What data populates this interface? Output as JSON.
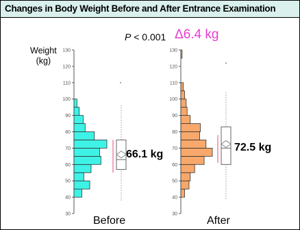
{
  "title": "Changes in Body Weight Before and After Entrance Examination",
  "p_value": {
    "symbol": "P",
    "text": " < 0.001"
  },
  "delta": "Δ6.4 kg",
  "colors": {
    "before_fill": "#3ef2e6",
    "after_fill": "#f7a86a",
    "title_bg": "#d9f0ec",
    "delta": "#e83cd1",
    "mean_line": "#e86c8c"
  },
  "chart_data": [
    {
      "type": "histogram-boxplot",
      "group": "Before",
      "color": "#3ef2e6",
      "ylabel": [
        "Weight",
        "(kg)"
      ],
      "yticks": [
        30,
        40,
        50,
        60,
        70,
        80,
        90,
        100,
        110,
        120,
        130
      ],
      "ylim": [
        30,
        130
      ],
      "bins": [
        {
          "from": 40,
          "to": 45,
          "width": 0.24
        },
        {
          "from": 45,
          "to": 50,
          "width": 0.48
        },
        {
          "from": 50,
          "to": 55,
          "width": 0.3
        },
        {
          "from": 55,
          "to": 60,
          "width": 0.52
        },
        {
          "from": 60,
          "to": 65,
          "width": 0.82
        },
        {
          "from": 65,
          "to": 70,
          "width": 0.78
        },
        {
          "from": 70,
          "to": 75,
          "width": 1.0
        },
        {
          "from": 75,
          "to": 80,
          "width": 0.62
        },
        {
          "from": 80,
          "to": 85,
          "width": 0.34
        },
        {
          "from": 85,
          "to": 90,
          "width": 0.28
        },
        {
          "from": 90,
          "to": 95,
          "width": 0.16
        },
        {
          "from": 95,
          "to": 100,
          "width": 0.09
        }
      ],
      "box": {
        "whisker_low": 38,
        "q1": 57,
        "median": 63,
        "q3": 75,
        "whisker_high": 97,
        "mean": 66.1,
        "ci_low": 55,
        "ci_high": 75
      },
      "outliers": [
        110
      ],
      "mean_label": "66.1 kg"
    },
    {
      "type": "histogram-boxplot",
      "group": "After",
      "color": "#f7a86a",
      "yticks": [
        30,
        40,
        50,
        60,
        70,
        80,
        90,
        100,
        110,
        120,
        130
      ],
      "ylim": [
        30,
        130
      ],
      "bins": [
        {
          "from": 40,
          "to": 45,
          "width": 0.12
        },
        {
          "from": 45,
          "to": 50,
          "width": 0.26
        },
        {
          "from": 50,
          "to": 55,
          "width": 0.3
        },
        {
          "from": 55,
          "to": 60,
          "width": 0.44
        },
        {
          "from": 60,
          "to": 65,
          "width": 0.74
        },
        {
          "from": 65,
          "to": 70,
          "width": 1.0
        },
        {
          "from": 70,
          "to": 75,
          "width": 0.8
        },
        {
          "from": 75,
          "to": 80,
          "width": 0.6
        },
        {
          "from": 80,
          "to": 85,
          "width": 0.62
        },
        {
          "from": 85,
          "to": 90,
          "width": 0.3
        },
        {
          "from": 90,
          "to": 95,
          "width": 0.2
        },
        {
          "from": 95,
          "to": 100,
          "width": 0.17
        },
        {
          "from": 100,
          "to": 105,
          "width": 0.12
        },
        {
          "from": 105,
          "to": 110,
          "width": 0.08
        },
        {
          "from": 125,
          "to": 130,
          "width": 0.04
        }
      ],
      "box": {
        "whisker_low": 39,
        "q1": 60,
        "median": 70,
        "q3": 83,
        "whisker_high": 104,
        "mean": 72.5,
        "ci_low": 61,
        "ci_high": 78
      },
      "outliers": [
        122
      ],
      "mean_label": "72.5 kg"
    }
  ]
}
